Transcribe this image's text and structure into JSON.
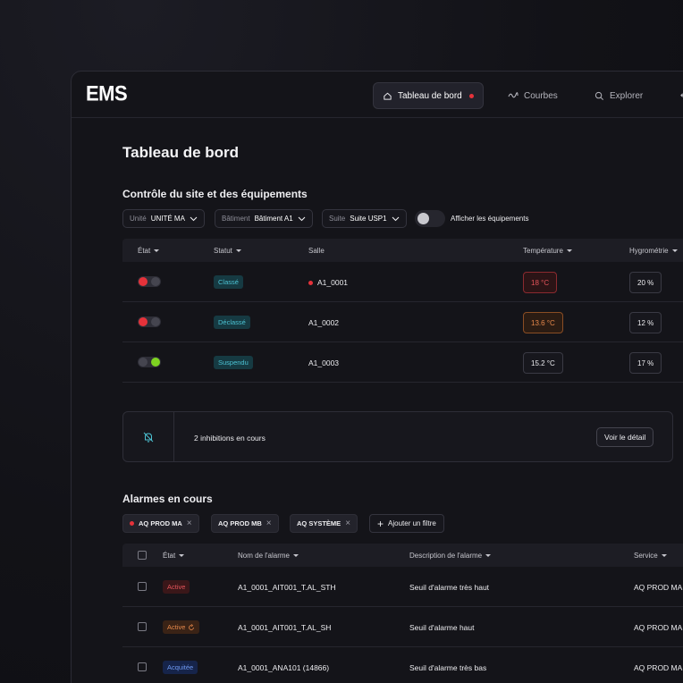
{
  "app": {
    "logo": "EMS"
  },
  "nav": [
    {
      "label": "Tableau de bord",
      "icon": "home-icon",
      "active": true,
      "has_dot": true
    },
    {
      "label": "Courbes",
      "icon": "wave-icon"
    },
    {
      "label": "Explorer",
      "icon": "search-icon"
    }
  ],
  "page": {
    "title": "Tableau de bord"
  },
  "site": {
    "title": "Contrôle du site et des équipements",
    "filters": [
      {
        "label": "Unité",
        "value": "UNITÉ MA"
      },
      {
        "label": "Bâtiment",
        "value": "Bâtiment A1"
      },
      {
        "label": "Suite",
        "value": "Suite USP1"
      }
    ],
    "toggle_label": "Afficher les équipements",
    "columns": {
      "etat": "État",
      "statut": "Statut",
      "salle": "Salle",
      "temperature": "Température",
      "hygrometrie": "Hygrométrie"
    },
    "rows": [
      {
        "state": [
          "red",
          "off"
        ],
        "status": "Classé",
        "status_color": "teal",
        "room": "A1_0001",
        "room_dot": true,
        "temp": "18 °C",
        "temp_level": "red",
        "hygro": "20 %"
      },
      {
        "state": [
          "red",
          "off"
        ],
        "status": "Déclassé",
        "status_color": "teal",
        "room": "A1_0002",
        "room_dot": false,
        "temp": "13.6 °C",
        "temp_level": "orange",
        "hygro": "12 %"
      },
      {
        "state": [
          "off",
          "green"
        ],
        "status": "Suspendu",
        "status_color": "teal",
        "room": "A1_0003",
        "room_dot": false,
        "temp": "15.2 °C",
        "temp_level": "normal",
        "hygro": "17 %"
      }
    ]
  },
  "inhibitions": {
    "text": "2 inhibitions en cours",
    "button": "Voir le détail",
    "icon": "bell-off-icon"
  },
  "alarms": {
    "title": "Alarmes en cours",
    "chips": [
      {
        "label": "AQ PROD MA",
        "dot": true
      },
      {
        "label": "AQ PROD MB",
        "dot": false
      },
      {
        "label": "AQ SYSTÈME",
        "dot": false
      }
    ],
    "add_filter": "Ajouter un filtre",
    "columns": {
      "etat": "État",
      "nom": "Nom de l'alarme",
      "description": "Description de l'alarme",
      "service": "Service"
    },
    "rows": [
      {
        "state": "Active",
        "state_color": "red",
        "spinner": false,
        "name": "A1_0001_AIT001_T.AL_STH",
        "description": "Seuil d'alarme très haut",
        "service": "AQ PROD MA"
      },
      {
        "state": "Active",
        "state_color": "orange",
        "spinner": true,
        "name": "A1_0001_AIT001_T.AL_SH",
        "description": "Seuil d'alarme haut",
        "service": "AQ PROD MA"
      },
      {
        "state": "Acquitée",
        "state_color": "blue",
        "spinner": false,
        "name": "A1_0001_ANA101 (14866)",
        "description": "Seuil d'alarme très bas",
        "service": "AQ PROD MA"
      }
    ]
  },
  "colors": {
    "red": "#e5323a",
    "green": "#7ed321",
    "teal": "#4cc3d4",
    "orange": "#e6884b",
    "blue": "#6e98f0"
  }
}
